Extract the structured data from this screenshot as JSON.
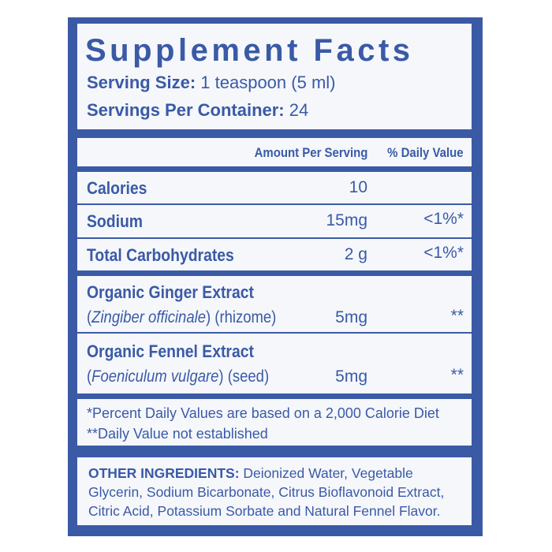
{
  "title": "Supplement Facts",
  "serving_size": {
    "label": "Serving Size:",
    "value": "1 teaspoon (5 ml)"
  },
  "servings_per_container": {
    "label": "Servings Per Container:",
    "value": "24"
  },
  "table": {
    "headers": [
      "Amount Per Serving",
      "% Daily Value"
    ],
    "rows": [
      {
        "name": "Calories",
        "amount": "10"
      },
      {
        "name": "Sodium",
        "amount": "15mg",
        "dv": "<1%*"
      },
      {
        "name": "Total Carbohydrates",
        "amount": "2 g",
        "dv": "<1%*"
      },
      {
        "name": "Organic Ginger Extract",
        "sub": [
          "(",
          "Zingiber officinale",
          ") (rhizome)"
        ],
        "amount": "5mg",
        "dv": "**"
      },
      {
        "name": "Organic Fennel Extract",
        "sub": [
          "(",
          "Foeniculum vulgare",
          ") (seed)"
        ],
        "amount": "5mg",
        "dv": "**"
      }
    ]
  },
  "footnotes": [
    "*Percent Daily Values are based on a 2,000 Calorie Diet",
    "**Daily Value not established"
  ],
  "other_ingredients": {
    "label": "OTHER INGREDIENTS:",
    "text": "Deionized Water, Vegetable Glycerin, Sodium Bicarbonate, Citrus Bioflavonoid Extract, Citric Acid, Potassium Sorbate and Natural Fennel Flavor."
  }
}
